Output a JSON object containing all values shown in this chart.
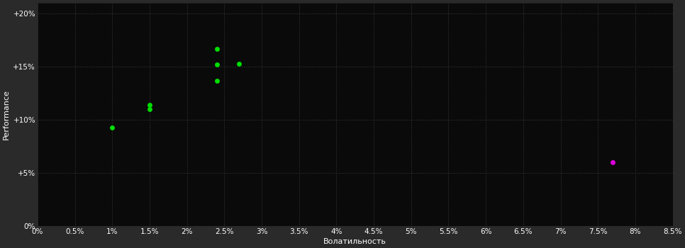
{
  "background_color": "#2a2a2a",
  "plot_bg_color": "#0a0a0a",
  "grid_color": "#3a3a3a",
  "xlabel": "Волатильность",
  "ylabel": "Performance",
  "xlim": [
    0.0,
    0.085
  ],
  "ylim": [
    0.0,
    0.21
  ],
  "xtick_values": [
    0.0,
    0.005,
    0.01,
    0.015,
    0.02,
    0.025,
    0.03,
    0.035,
    0.04,
    0.045,
    0.05,
    0.055,
    0.06,
    0.065,
    0.07,
    0.075,
    0.08,
    0.085
  ],
  "xtick_labels": [
    "0%",
    "0.5%",
    "1%",
    "1.5%",
    "2%",
    "2.5%",
    "3%",
    "3.5%",
    "4%",
    "4.5%",
    "5%",
    "5.5%",
    "6%",
    "6.5%",
    "7%",
    "7.5%",
    "8%",
    "8.5%"
  ],
  "ytick_values": [
    0.0,
    0.05,
    0.1,
    0.15,
    0.2
  ],
  "ytick_labels": [
    "0%",
    "+5%",
    "+10%",
    "+15%",
    "+20%"
  ],
  "green_points": [
    [
      0.01,
      0.093
    ],
    [
      0.015,
      0.114
    ],
    [
      0.015,
      0.11
    ],
    [
      0.024,
      0.167
    ],
    [
      0.024,
      0.152
    ],
    [
      0.024,
      0.137
    ],
    [
      0.027,
      0.153
    ]
  ],
  "magenta_points": [
    [
      0.077,
      0.06
    ]
  ],
  "green_color": "#00dd00",
  "magenta_color": "#dd00dd",
  "marker_size": 5,
  "axis_text_color": "#ffffff",
  "xlabel_fontsize": 8,
  "ylabel_fontsize": 8,
  "tick_fontsize": 7.5,
  "grid_linestyle": ":",
  "grid_linewidth": 0.7
}
